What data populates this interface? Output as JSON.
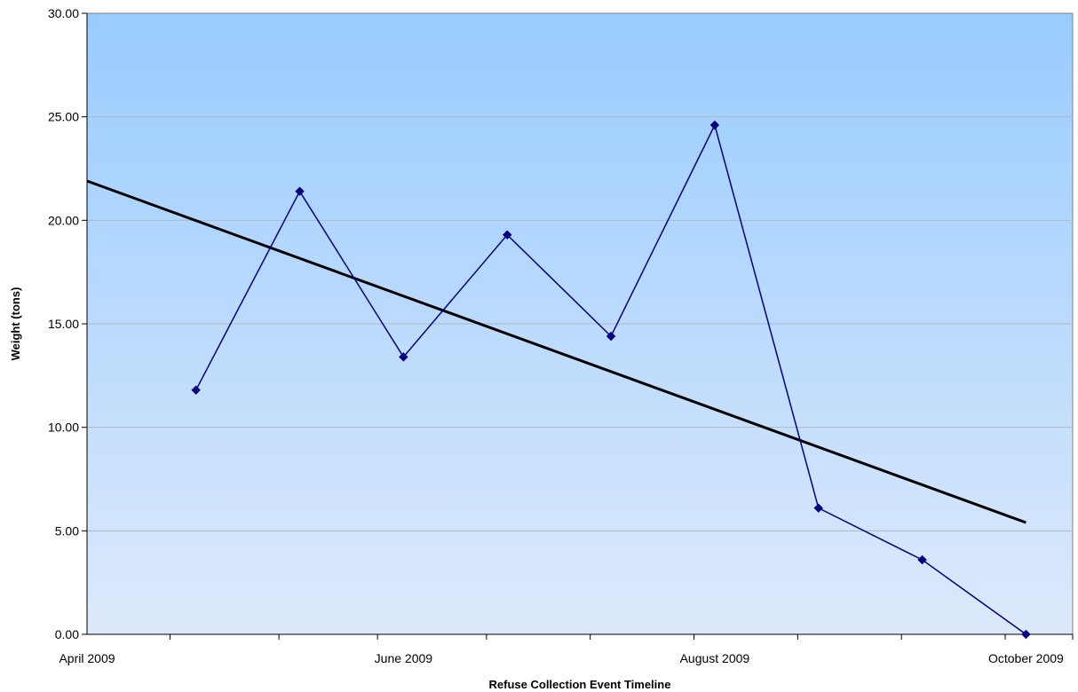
{
  "chart_data": {
    "type": "line",
    "title": "",
    "xlabel": "Refuse Collection Event Timeline",
    "ylabel": "Weight (tons)",
    "ylim": [
      0,
      30
    ],
    "y_ticks": [
      "0.00",
      "5.00",
      "10.00",
      "15.00",
      "20.00",
      "25.00",
      "30.00"
    ],
    "x_ticks": [
      "April 2009",
      "June 2009",
      "August 2009",
      "October 2009"
    ],
    "grid": "horizontal",
    "legend": "none",
    "x": [
      "2009-04-15",
      "2009-05-05",
      "2009-05-25",
      "2009-06-14",
      "2009-07-04",
      "2009-07-24",
      "2009-08-13",
      "2009-09-02",
      "2009-09-22"
    ],
    "series": [
      {
        "values": [
          11.8,
          21.4,
          13.4,
          19.3,
          14.4,
          24.6,
          6.1,
          3.6,
          0.0
        ],
        "color": "#000080",
        "marker": "diamond"
      }
    ],
    "trendline": {
      "type": "linear",
      "color": "#000000",
      "x": [
        "2009-03-25",
        "2009-09-22"
      ],
      "values": [
        21.9,
        5.4
      ]
    },
    "background_gradient": [
      "#99ccff",
      "#dde9fb"
    ]
  }
}
